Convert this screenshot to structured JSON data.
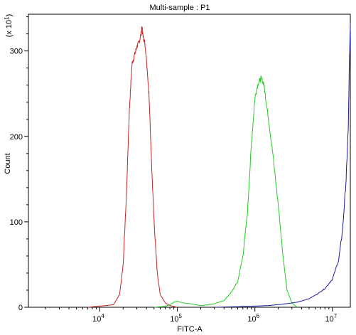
{
  "chart_data": {
    "type": "line",
    "title": "Multi-sample : P1",
    "xlabel": "FITC-A",
    "ylabel": "Count",
    "y_multiplier": "(x 10",
    "y_multiplier_exp": "1",
    "y_multiplier_close": ")",
    "x_scale": "log",
    "xlim": [
      1200,
      17000000
    ],
    "ylim": [
      0,
      343
    ],
    "x_ticks": [
      {
        "base": "10",
        "exp": "4",
        "value": 10000
      },
      {
        "base": "10",
        "exp": "5",
        "value": 100000
      },
      {
        "base": "10",
        "exp": "6",
        "value": 1000000
      },
      {
        "base": "10",
        "exp": "7",
        "value": 10000000
      }
    ],
    "y_ticks": [
      {
        "label": "0",
        "value": 0
      },
      {
        "label": "100",
        "value": 100
      },
      {
        "label": "200",
        "value": 200
      },
      {
        "label": "300",
        "value": 300
      }
    ],
    "grid": false,
    "series": [
      {
        "color": "#cc2222",
        "x": [
          7000,
          9000,
          12000,
          15000,
          18000,
          20000,
          22000,
          24000,
          26000,
          28000,
          30000,
          32000,
          34000,
          35000,
          36000,
          38000,
          40000,
          43000,
          46000,
          50000,
          55000,
          60000,
          70000,
          80000,
          100000
        ],
        "y": [
          0,
          1,
          2,
          3,
          15,
          50,
          130,
          230,
          285,
          295,
          305,
          310,
          320,
          328,
          318,
          310,
          290,
          250,
          180,
          100,
          40,
          15,
          5,
          2,
          0
        ]
      },
      {
        "color": "#22cc22",
        "x": [
          50000,
          70000,
          80000,
          90000,
          100000,
          120000,
          150000,
          200000,
          250000,
          300000,
          400000,
          500000,
          600000,
          700000,
          800000,
          900000,
          1000000,
          1100000,
          1200000,
          1300000,
          1400000,
          1500000,
          1700000,
          2000000,
          2300000,
          2600000,
          3000000,
          3500000
        ],
        "y": [
          0,
          1,
          3,
          6,
          7,
          5,
          4,
          2,
          3,
          4,
          8,
          18,
          30,
          60,
          110,
          190,
          245,
          262,
          268,
          262,
          240,
          220,
          180,
          120,
          60,
          20,
          5,
          0
        ]
      },
      {
        "color": "#1a1aa0",
        "x": [
          300000,
          800000,
          1500000,
          2500000,
          3500000,
          5000000,
          6500000,
          8000000,
          10000000,
          12000000,
          13500000,
          15000000,
          16000000,
          16500000,
          17000000
        ],
        "y": [
          0,
          1,
          2,
          4,
          6,
          10,
          16,
          22,
          33,
          55,
          90,
          150,
          210,
          280,
          333
        ]
      }
    ]
  }
}
